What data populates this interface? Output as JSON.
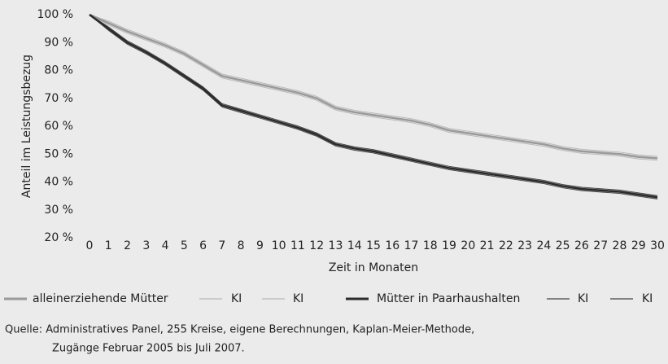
{
  "chart_data": {
    "type": "line",
    "y_label": "Anteil im Leistungsbezug",
    "x_label": "Zeit in Monaten",
    "categories": [
      "0",
      "1",
      "2",
      "3",
      "4",
      "5",
      "6",
      "7",
      "8",
      "9",
      "10",
      "11",
      "12",
      "13",
      "14",
      "15",
      "16",
      "17",
      "18",
      "19",
      "20",
      "21",
      "22",
      "23",
      "24",
      "25",
      "26",
      "27",
      "28",
      "29",
      "30"
    ],
    "ylim": [
      20,
      100
    ],
    "yticks": [
      {
        "value": 20,
        "label": "20 %"
      },
      {
        "value": 30,
        "label": "30 %"
      },
      {
        "value": 40,
        "label": "40 %"
      },
      {
        "value": 50,
        "label": "50 %"
      },
      {
        "value": 60,
        "label": "60 %"
      },
      {
        "value": 70,
        "label": "70 %"
      },
      {
        "value": 80,
        "label": "80 %"
      },
      {
        "value": 90,
        "label": "90 %"
      },
      {
        "value": 100,
        "label": "100 %"
      }
    ],
    "series": [
      {
        "name": "alleinerziehende Mütter",
        "color": "#9a9a9a",
        "values": [
          100,
          97,
          94,
          91.5,
          89,
          86,
          82,
          78,
          76.5,
          75,
          73.5,
          72,
          70,
          66.5,
          65,
          64,
          63,
          62,
          60.5,
          58.5,
          57.5,
          56.5,
          55.5,
          54.5,
          53.5,
          52,
          51,
          50.5,
          50,
          49,
          48.5
        ]
      },
      {
        "name": "KI",
        "color": "#b8b8b8",
        "values": [
          100,
          97.7,
          94.7,
          92.2,
          89.7,
          86.7,
          82.7,
          78.7,
          77.2,
          75.7,
          74.2,
          72.7,
          70.7,
          67.2,
          65.7,
          64.7,
          63.7,
          62.7,
          61.2,
          59.2,
          58.2,
          57.2,
          56.2,
          55.2,
          54.2,
          52.7,
          51.7,
          51.2,
          50.7,
          49.7,
          49.2
        ]
      },
      {
        "name": "KI",
        "color": "#b8b8b8",
        "values": [
          100,
          96.3,
          93.3,
          90.8,
          88.3,
          85.3,
          81.3,
          77.3,
          75.8,
          74.3,
          72.8,
          71.3,
          69.3,
          65.8,
          64.3,
          63.3,
          62.3,
          61.3,
          59.8,
          57.8,
          56.8,
          55.8,
          54.8,
          53.8,
          52.8,
          51.3,
          50.3,
          49.8,
          49.3,
          48.3,
          47.8
        ]
      },
      {
        "name": "Mütter in Paarhaushalten",
        "color": "#2b2b2b",
        "values": [
          100,
          95,
          90,
          86.5,
          82.5,
          78,
          73.5,
          67.5,
          65.5,
          63.5,
          61.5,
          59.5,
          57,
          53.5,
          52,
          51,
          49.5,
          48,
          46.5,
          45,
          44,
          43,
          42,
          41,
          40,
          38.5,
          37.5,
          37,
          36.5,
          35.5,
          34.5
        ]
      },
      {
        "name": "KI",
        "color": "#444444",
        "values": [
          100,
          95.6,
          90.6,
          87.1,
          83.1,
          78.6,
          74.1,
          68.1,
          66.1,
          64.1,
          62.1,
          60.1,
          57.6,
          54.1,
          52.6,
          51.6,
          50.1,
          48.6,
          47.1,
          45.6,
          44.6,
          43.6,
          42.6,
          41.6,
          40.6,
          39.1,
          38.1,
          37.6,
          37.1,
          36.1,
          35.1
        ]
      },
      {
        "name": "KI",
        "color": "#444444",
        "values": [
          100,
          94.4,
          89.4,
          85.9,
          81.9,
          77.4,
          72.9,
          66.9,
          64.9,
          62.9,
          60.9,
          58.9,
          56.4,
          52.9,
          51.4,
          50.4,
          48.9,
          47.4,
          45.9,
          44.4,
          43.4,
          42.4,
          41.4,
          40.4,
          39.4,
          37.9,
          36.9,
          36.4,
          35.9,
          34.9,
          33.9
        ]
      }
    ],
    "source": [
      "Quelle: Administratives Panel, 255 Kreise, eigene Berechnungen, Kaplan-Meier-Methode,",
      "Zugänge Februar 2005 bis Juli 2007."
    ]
  }
}
